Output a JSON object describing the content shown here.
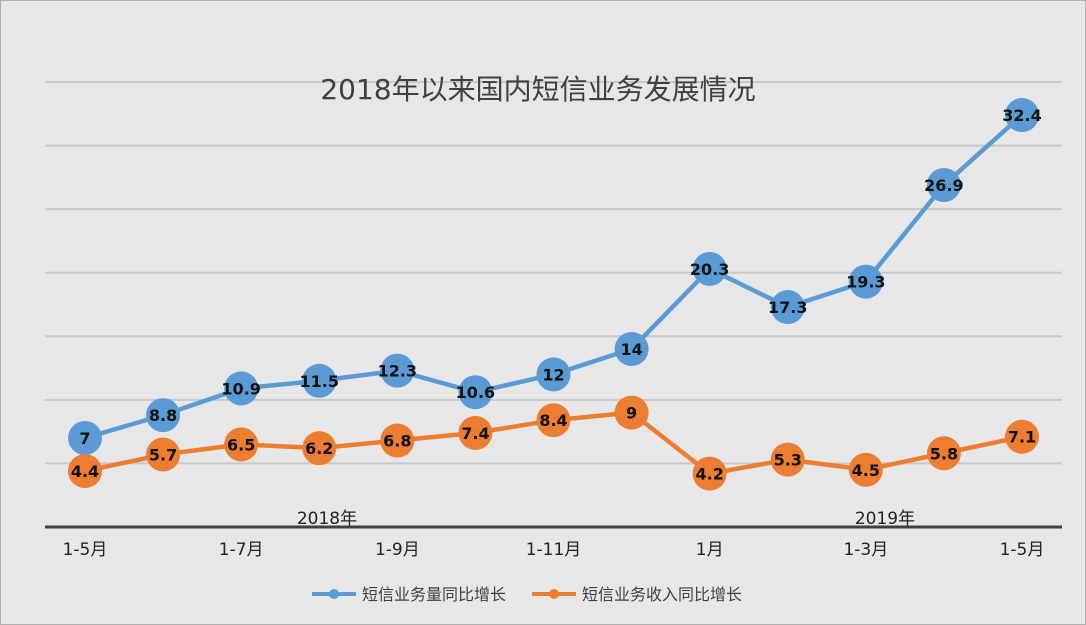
{
  "chart_data": {
    "type": "line",
    "title": "2018年以来国内短信业务发展情况",
    "categories": [
      "1-5月",
      "",
      "1-7月",
      "",
      "1-9月",
      "",
      "1-11月",
      "",
      "1月",
      "",
      "1-3月",
      "",
      "1-5月"
    ],
    "year_groups": [
      {
        "label": "2018年"
      },
      {
        "label": "2019年"
      }
    ],
    "series": [
      {
        "name": "短信业务量同比增长",
        "color": "#5b9bd5",
        "values": [
          7,
          8.8,
          10.9,
          11.5,
          12.3,
          10.6,
          12,
          14,
          20.3,
          17.3,
          19.3,
          26.9,
          32.4
        ]
      },
      {
        "name": "短信业务收入同比增长",
        "color": "#ed7d31",
        "values": [
          4.4,
          5.7,
          6.5,
          6.2,
          6.8,
          7.4,
          8.4,
          9,
          4.2,
          5.3,
          4.5,
          5.8,
          7.1
        ]
      }
    ],
    "ylim": [
      0,
      35
    ],
    "grid": true,
    "legend": "bottom"
  }
}
